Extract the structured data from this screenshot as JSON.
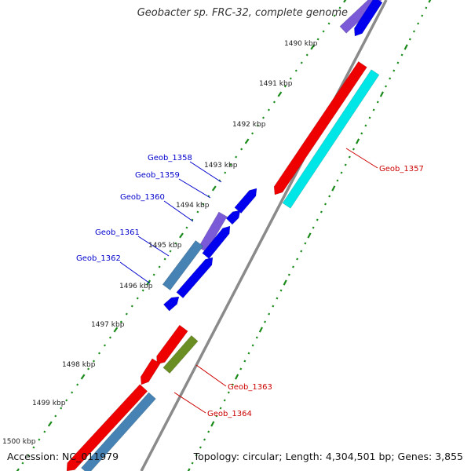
{
  "title": "Geobacter sp. FRC-32, complete genome",
  "footer": {
    "accession": "Accession: NC_011979",
    "stats": "Topology: circular; Length: 4,304,501 bp; Genes: 3,855"
  },
  "scale_ticks": [
    "1490 kbp",
    "1491 kbp",
    "1492 kbp",
    "1493 kbp",
    "1494 kbp",
    "1495 kbp",
    "1496 kbp",
    "1497 kbp",
    "1498 kbp",
    "1499 kbp",
    "1500 kbp"
  ],
  "gene_labels": [
    {
      "name": "Geob_1357",
      "strand": "minus"
    },
    {
      "name": "Geob_1358",
      "strand": "plus"
    },
    {
      "name": "Geob_1359",
      "strand": "plus"
    },
    {
      "name": "Geob_1360",
      "strand": "plus"
    },
    {
      "name": "Geob_1361",
      "strand": "plus"
    },
    {
      "name": "Geob_1362",
      "strand": "plus"
    },
    {
      "name": "Geob_1363",
      "strand": "minus"
    },
    {
      "name": "Geob_1364",
      "strand": "minus"
    }
  ],
  "colors": {
    "plus_label": "#0000cc",
    "minus_label": "#cc0000",
    "backbone": "#8a8a8a",
    "tick": "#1a8a1a",
    "red": "#ee0000",
    "cyan": "#00e6e6",
    "blue": "#0000ee",
    "purple": "#7a5ad6",
    "steel": "#4682b4",
    "olive": "#6b8e23"
  }
}
